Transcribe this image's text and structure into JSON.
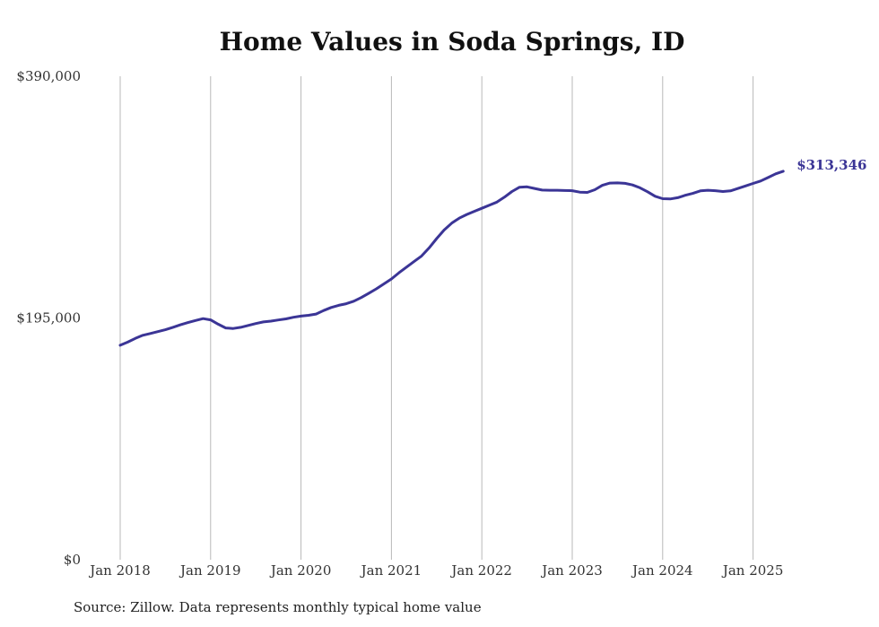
{
  "chart_data": {
    "type": "line",
    "title": "Home Values in Soda Springs, ID",
    "source": "Source: Zillow. Data represents monthly typical home value",
    "ylim": [
      0,
      390000
    ],
    "yticks": [
      {
        "value": 0,
        "label": "$0"
      },
      {
        "value": 195000,
        "label": "$195,000"
      },
      {
        "value": 390000,
        "label": "$390,000"
      }
    ],
    "xticks": [
      "Jan 2018",
      "Jan 2019",
      "Jan 2020",
      "Jan 2021",
      "Jan 2022",
      "Jan 2023",
      "Jan 2024",
      "Jan 2025"
    ],
    "grid": "vertical",
    "line_color": "#3b3596",
    "end_label": "$313,346",
    "series": [
      {
        "x": [
          "2018-01",
          "2018-02",
          "2018-03",
          "2018-04",
          "2018-05",
          "2018-06",
          "2018-07",
          "2018-08",
          "2018-09",
          "2018-10",
          "2018-11",
          "2018-12",
          "2019-01",
          "2019-02",
          "2019-03",
          "2019-04",
          "2019-05",
          "2019-06",
          "2019-07",
          "2019-08",
          "2019-09",
          "2019-10",
          "2019-11",
          "2019-12",
          "2020-01",
          "2020-02",
          "2020-03",
          "2020-04",
          "2020-05",
          "2020-06",
          "2020-07",
          "2020-08",
          "2020-09",
          "2020-10",
          "2020-11",
          "2020-12",
          "2021-01",
          "2021-02",
          "2021-03",
          "2021-04",
          "2021-05",
          "2021-06",
          "2021-07",
          "2021-08",
          "2021-09",
          "2021-10",
          "2021-11",
          "2021-12",
          "2022-01",
          "2022-02",
          "2022-03",
          "2022-04",
          "2022-05",
          "2022-06",
          "2022-07",
          "2022-08",
          "2022-09",
          "2022-10",
          "2022-11",
          "2022-12",
          "2023-01",
          "2023-02",
          "2023-03",
          "2023-04",
          "2023-05",
          "2023-06",
          "2023-07",
          "2023-08",
          "2023-09",
          "2023-10",
          "2023-11",
          "2023-12",
          "2024-01",
          "2024-02",
          "2024-03",
          "2024-04",
          "2024-05",
          "2024-06",
          "2024-07",
          "2024-08",
          "2024-09",
          "2024-10",
          "2024-11",
          "2024-12",
          "2025-01",
          "2025-02",
          "2025-03",
          "2025-04",
          "2025-05"
        ],
        "values": [
          173000,
          175500,
          178500,
          181000,
          182500,
          184000,
          185500,
          187500,
          189500,
          191300,
          193000,
          194500,
          193500,
          190000,
          187000,
          186500,
          187500,
          189000,
          190500,
          191800,
          192500,
          193400,
          194300,
          195600,
          196500,
          197200,
          198200,
          201000,
          203500,
          205200,
          206500,
          208500,
          211500,
          215000,
          218500,
          222500,
          226500,
          231500,
          236000,
          240500,
          245000,
          251500,
          259000,
          266000,
          271500,
          275500,
          278500,
          281000,
          283500,
          286000,
          288500,
          292500,
          297000,
          300500,
          300800,
          299500,
          298200,
          298000,
          298000,
          297800,
          297700,
          296500,
          296300,
          298500,
          302000,
          303800,
          304000,
          303600,
          302300,
          300000,
          296800,
          293200,
          291200,
          291000,
          292000,
          294000,
          295500,
          297500,
          298000,
          297700,
          297000,
          297500,
          299500,
          301500,
          303500,
          305500,
          308300,
          311300,
          313346
        ]
      }
    ]
  }
}
